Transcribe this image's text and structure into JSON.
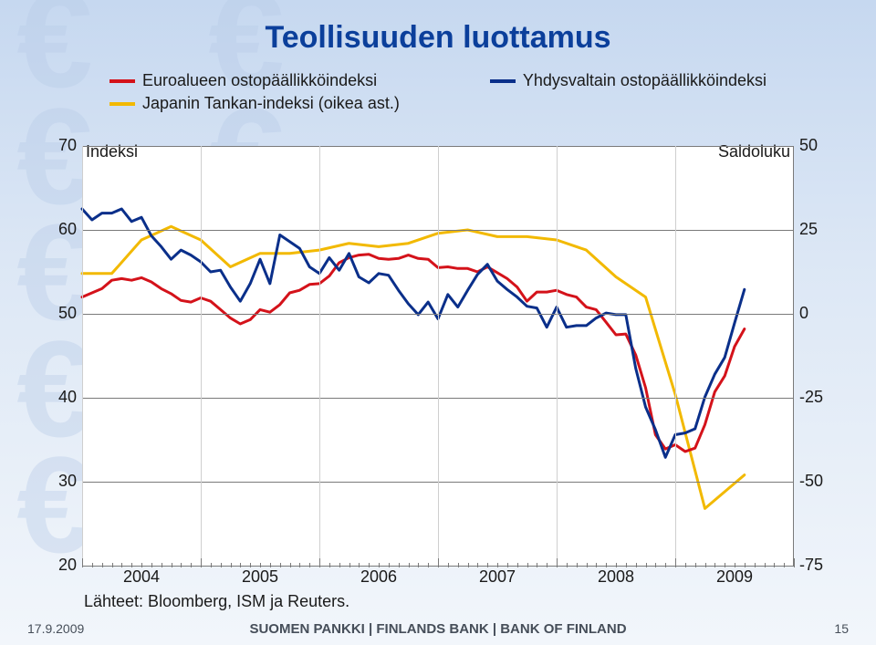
{
  "title": "Teollisuuden luottamus",
  "legend": [
    {
      "label": "Euroalueen ostopäällikköindeksi",
      "color": "#d4121a"
    },
    {
      "label": "Yhdysvaltain ostopäällikköindeksi",
      "color": "#0a2f8a"
    },
    {
      "label": "Japanin Tankan-indeksi (oikea ast.)",
      "color": "#f2b900"
    }
  ],
  "axis_left_label": "Indeksi",
  "axis_right_label": "Saldoluku",
  "source": "Lähteet: Bloomberg, ISM ja Reuters.",
  "footer_date": "17.9.2009",
  "footer_org": "SUOMEN PANKKI | FINLANDS BANK | BANK OF FINLAND",
  "footer_page": "15",
  "chart": {
    "type": "line",
    "background_color": "#ffffff",
    "grid_color": "#7a7a7a",
    "line_width": 3,
    "y_left": {
      "min": 20,
      "max": 70,
      "ticks": [
        70,
        60,
        50,
        40,
        30,
        20
      ]
    },
    "y_right": {
      "min": -75,
      "max": 50,
      "ticks": [
        50,
        25,
        0,
        -25,
        -50,
        -75
      ]
    },
    "x_years_major": [
      2004,
      2005,
      2006,
      2007,
      2008,
      2009
    ],
    "x_domain_months": {
      "start": 0,
      "end": 72
    },
    "series_left": {
      "euro": {
        "color": "#d4121a",
        "points": [
          [
            0,
            52
          ],
          [
            1,
            52.5
          ],
          [
            2,
            53
          ],
          [
            3,
            54
          ],
          [
            4,
            54.2
          ],
          [
            5,
            54
          ],
          [
            6,
            54.3
          ],
          [
            7,
            53.8
          ],
          [
            8,
            53
          ],
          [
            9,
            52.4
          ],
          [
            10,
            51.6
          ],
          [
            11,
            51.4
          ],
          [
            12,
            51.9
          ],
          [
            13,
            51.5
          ],
          [
            14,
            50.5
          ],
          [
            15,
            49.5
          ],
          [
            16,
            48.8
          ],
          [
            17,
            49.3
          ],
          [
            18,
            50.5
          ],
          [
            19,
            50.2
          ],
          [
            20,
            51.1
          ],
          [
            21,
            52.5
          ],
          [
            22,
            52.8
          ],
          [
            23,
            53.5
          ],
          [
            24,
            53.6
          ],
          [
            25,
            54.5
          ],
          [
            26,
            56.1
          ],
          [
            27,
            56.7
          ],
          [
            28,
            57
          ],
          [
            29,
            57.1
          ],
          [
            30,
            56.6
          ],
          [
            31,
            56.5
          ],
          [
            32,
            56.6
          ],
          [
            33,
            57
          ],
          [
            34,
            56.6
          ],
          [
            35,
            56.5
          ],
          [
            36,
            55.5
          ],
          [
            37,
            55.6
          ],
          [
            38,
            55.4
          ],
          [
            39,
            55.4
          ],
          [
            40,
            55
          ],
          [
            41,
            55.6
          ],
          [
            42,
            54.9
          ],
          [
            43,
            54.2
          ],
          [
            44,
            53.2
          ],
          [
            45,
            51.5
          ],
          [
            46,
            52.6
          ],
          [
            47,
            52.6
          ],
          [
            48,
            52.8
          ],
          [
            49,
            52.3
          ],
          [
            50,
            52
          ],
          [
            51,
            50.8
          ],
          [
            52,
            50.5
          ],
          [
            53,
            49
          ],
          [
            54,
            47.5
          ],
          [
            55,
            47.6
          ],
          [
            56,
            45.1
          ],
          [
            57,
            41.2
          ],
          [
            58,
            35.6
          ],
          [
            59,
            33.9
          ],
          [
            60,
            34.4
          ],
          [
            61,
            33.6
          ],
          [
            62,
            34
          ],
          [
            63,
            36.8
          ],
          [
            64,
            40.7
          ],
          [
            65,
            42.6
          ],
          [
            66,
            46.1
          ],
          [
            67,
            48.2
          ]
        ]
      },
      "us": {
        "color": "#0a2f8a",
        "points": [
          [
            0,
            62.5
          ],
          [
            1,
            61.2
          ],
          [
            2,
            62
          ],
          [
            3,
            62
          ],
          [
            4,
            62.5
          ],
          [
            5,
            61
          ],
          [
            6,
            61.5
          ],
          [
            7,
            59.3
          ],
          [
            8,
            58
          ],
          [
            9,
            56.5
          ],
          [
            10,
            57.6
          ],
          [
            11,
            57
          ],
          [
            12,
            56.2
          ],
          [
            13,
            55
          ],
          [
            14,
            55.2
          ],
          [
            15,
            53.2
          ],
          [
            16,
            51.5
          ],
          [
            17,
            53.6
          ],
          [
            18,
            56.5
          ],
          [
            19,
            53.6
          ],
          [
            20,
            59.4
          ],
          [
            21,
            58.6
          ],
          [
            22,
            57.8
          ],
          [
            23,
            55.6
          ],
          [
            24,
            54.8
          ],
          [
            25,
            56.7
          ],
          [
            26,
            55.2
          ],
          [
            27,
            57.2
          ],
          [
            28,
            54.4
          ],
          [
            29,
            53.7
          ],
          [
            30,
            54.8
          ],
          [
            31,
            54.6
          ],
          [
            32,
            52.8
          ],
          [
            33,
            51.2
          ],
          [
            34,
            49.9
          ],
          [
            35,
            51.4
          ],
          [
            36,
            49.4
          ],
          [
            37,
            52.3
          ],
          [
            38,
            50.8
          ],
          [
            39,
            52.8
          ],
          [
            40,
            54.7
          ],
          [
            41,
            55.9
          ],
          [
            42,
            53.9
          ],
          [
            43,
            52.9
          ],
          [
            44,
            52
          ],
          [
            45,
            50.9
          ],
          [
            46,
            50.7
          ],
          [
            47,
            48.4
          ],
          [
            48,
            50.8
          ],
          [
            49,
            48.4
          ],
          [
            50,
            48.6
          ],
          [
            51,
            48.6
          ],
          [
            52,
            49.5
          ],
          [
            53,
            50.1
          ],
          [
            54,
            49.9
          ],
          [
            55,
            49.9
          ],
          [
            56,
            43.5
          ],
          [
            57,
            38.9
          ],
          [
            58,
            36.2
          ],
          [
            59,
            32.9
          ],
          [
            60,
            35.6
          ],
          [
            61,
            35.8
          ],
          [
            62,
            36.3
          ],
          [
            63,
            40.1
          ],
          [
            64,
            42.8
          ],
          [
            65,
            44.8
          ],
          [
            66,
            48.9
          ],
          [
            67,
            52.9
          ]
        ]
      }
    },
    "series_right": {
      "japan": {
        "color": "#f2b900",
        "points": [
          [
            0,
            12
          ],
          [
            3,
            12
          ],
          [
            6,
            22
          ],
          [
            9,
            26
          ],
          [
            12,
            22
          ],
          [
            15,
            14
          ],
          [
            18,
            18
          ],
          [
            21,
            18
          ],
          [
            24,
            19
          ],
          [
            27,
            21
          ],
          [
            30,
            20
          ],
          [
            33,
            21
          ],
          [
            36,
            24
          ],
          [
            39,
            25
          ],
          [
            42,
            23
          ],
          [
            45,
            23
          ],
          [
            48,
            22
          ],
          [
            51,
            19
          ],
          [
            54,
            11
          ],
          [
            57,
            5
          ],
          [
            60,
            -24
          ],
          [
            63,
            -58
          ],
          [
            67,
            -48
          ]
        ]
      }
    }
  }
}
